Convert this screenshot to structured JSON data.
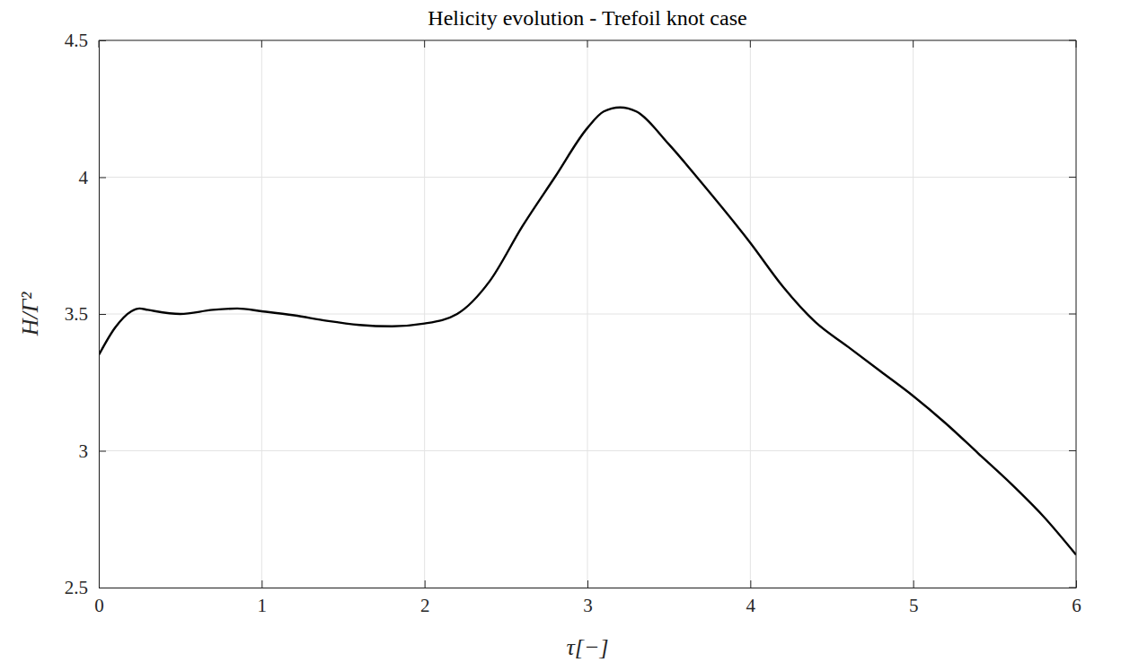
{
  "chart_data": {
    "type": "line",
    "title": "Helicity evolution - Trefoil knot case",
    "x_label": "τ[−]",
    "y_label": "H/Γ²",
    "x": [
      0,
      0.1,
      0.2,
      0.25,
      0.3,
      0.5,
      0.7,
      0.85,
      1.0,
      1.2,
      1.4,
      1.6,
      1.8,
      2.0,
      2.2,
      2.4,
      2.6,
      2.8,
      3.0,
      3.1,
      3.2,
      3.3,
      3.5,
      3.7,
      4.0,
      4.2,
      4.4,
      4.6,
      4.8,
      5.0,
      5.2,
      5.4,
      5.6,
      5.8,
      6.0
    ],
    "values": [
      3.35,
      3.45,
      3.51,
      3.52,
      3.515,
      3.5,
      3.515,
      3.52,
      3.51,
      3.495,
      3.475,
      3.46,
      3.455,
      3.465,
      3.5,
      3.62,
      3.82,
      4.0,
      4.18,
      4.24,
      4.255,
      4.24,
      4.12,
      3.98,
      3.76,
      3.6,
      3.47,
      3.38,
      3.29,
      3.2,
      3.1,
      2.99,
      2.88,
      2.76,
      2.62
    ],
    "color": "#000000",
    "xlim": [
      0,
      6
    ],
    "xticks": [
      0,
      1,
      2,
      3,
      4,
      5,
      6
    ],
    "ylim": [
      2.5,
      4.5
    ],
    "yticks": [
      2.5,
      3,
      3.5,
      4,
      4.5
    ],
    "grid": true
  }
}
